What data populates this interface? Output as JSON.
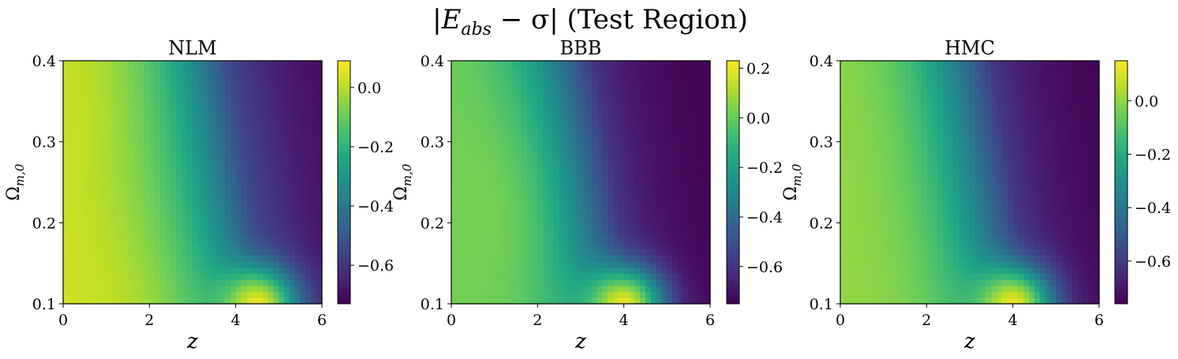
{
  "suptitle_math": "|E",
  "suptitle_sub": "abs",
  "suptitle_mid": " − σ| ",
  "suptitle_text": "(Test Region)",
  "chart_data": [
    {
      "type": "heatmap",
      "title": "NLM",
      "xlabel": "z",
      "ylabel": "Ω_m,0",
      "xlim": [
        0,
        6
      ],
      "ylim": [
        0.1,
        0.4
      ],
      "xticks": [
        0,
        2,
        4,
        6
      ],
      "yticks": [
        0.1,
        0.2,
        0.3,
        0.4
      ],
      "colormap": "viridis",
      "colorbar_range": [
        -0.73,
        0.09
      ],
      "colorbar_ticks": [
        0.0,
        -0.2,
        -0.4,
        -0.6
      ],
      "colorbar_tick_labels": [
        "0.0",
        "−0.2",
        "−0.4",
        "−0.6"
      ],
      "field": {
        "base": 0.03,
        "z_start": 3.5,
        "z_slope": 2.8,
        "drop": 0.76,
        "dip_value": 0.09,
        "dip_z": 4.5,
        "bump": -0.02
      }
    },
    {
      "type": "heatmap",
      "title": "BBB",
      "xlabel": "z",
      "ylabel": "Ω_m,0",
      "xlim": [
        0,
        6
      ],
      "ylim": [
        0.1,
        0.4
      ],
      "xticks": [
        0,
        2,
        4,
        6
      ],
      "yticks": [
        0.1,
        0.2,
        0.3,
        0.4
      ],
      "colormap": "viridis",
      "colorbar_range": [
        -0.75,
        0.23
      ],
      "colorbar_ticks": [
        0.2,
        0.0,
        -0.2,
        -0.4,
        -0.6
      ],
      "colorbar_tick_labels": [
        "0.2",
        "0.0",
        "−0.2",
        "−0.4",
        "−0.6"
      ],
      "field": {
        "base": 0.02,
        "z_start": 3.0,
        "z_slope": 2.2,
        "drop": 0.77,
        "dip_value": 0.23,
        "dip_z": 4.0,
        "bump": 0.05
      }
    },
    {
      "type": "heatmap",
      "title": "HMC",
      "xlabel": "z",
      "ylabel": "Ω_m,0",
      "xlim": [
        0,
        6
      ],
      "ylim": [
        0.1,
        0.4
      ],
      "xticks": [
        0,
        2,
        4,
        6
      ],
      "yticks": [
        0.1,
        0.2,
        0.3,
        0.4
      ],
      "colormap": "viridis",
      "colorbar_range": [
        -0.76,
        0.15
      ],
      "colorbar_ticks": [
        0.0,
        -0.2,
        -0.4,
        -0.6
      ],
      "colorbar_tick_labels": [
        "0.0",
        "−0.2",
        "−0.4",
        "−0.6"
      ],
      "field": {
        "base": 0.0,
        "z_start": 3.2,
        "z_slope": 2.3,
        "drop": 0.76,
        "dip_value": 0.15,
        "dip_z": 4.0,
        "bump": 0.0
      }
    }
  ]
}
